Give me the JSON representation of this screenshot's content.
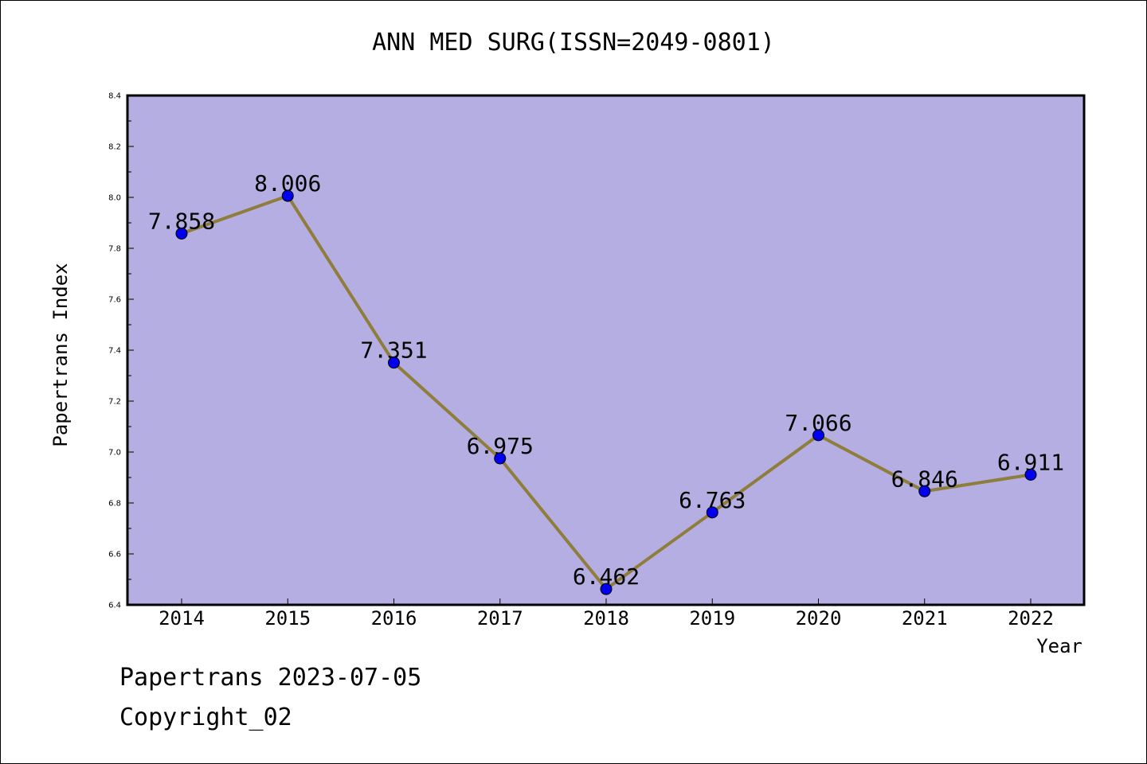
{
  "title": "ANN MED SURG(ISSN=2049-0801)",
  "footer": {
    "line1": "Papertrans 2023-07-05",
    "line2": "Copyright_02"
  },
  "colors": {
    "plot_background": "#b5aee2",
    "line": "#8f7d3c",
    "marker": "#0000ee"
  },
  "chart_data": {
    "type": "line",
    "title": "ANN MED SURG(ISSN=2049-0801)",
    "xlabel": "Year",
    "ylabel": "Papertrans Index",
    "x": [
      "2014",
      "2015",
      "2016",
      "2017",
      "2018",
      "2019",
      "2020",
      "2021",
      "2022"
    ],
    "series": [
      {
        "values": [
          7.858,
          8.006,
          7.351,
          6.975,
          6.462,
          6.763,
          7.066,
          6.846,
          6.911
        ],
        "labels": [
          "7.858",
          "8.006",
          "7.351",
          "6.975",
          "6.462",
          "6.763",
          "7.066",
          "6.846",
          "6.911"
        ]
      }
    ],
    "ylim": [
      6.4,
      8.4
    ],
    "yticks": [
      "6.4",
      "6.6",
      "6.8",
      "7.0",
      "7.2",
      "7.4",
      "7.6",
      "7.8",
      "8.0",
      "8.2",
      "8.4"
    ],
    "grid": false,
    "legend": "none"
  }
}
